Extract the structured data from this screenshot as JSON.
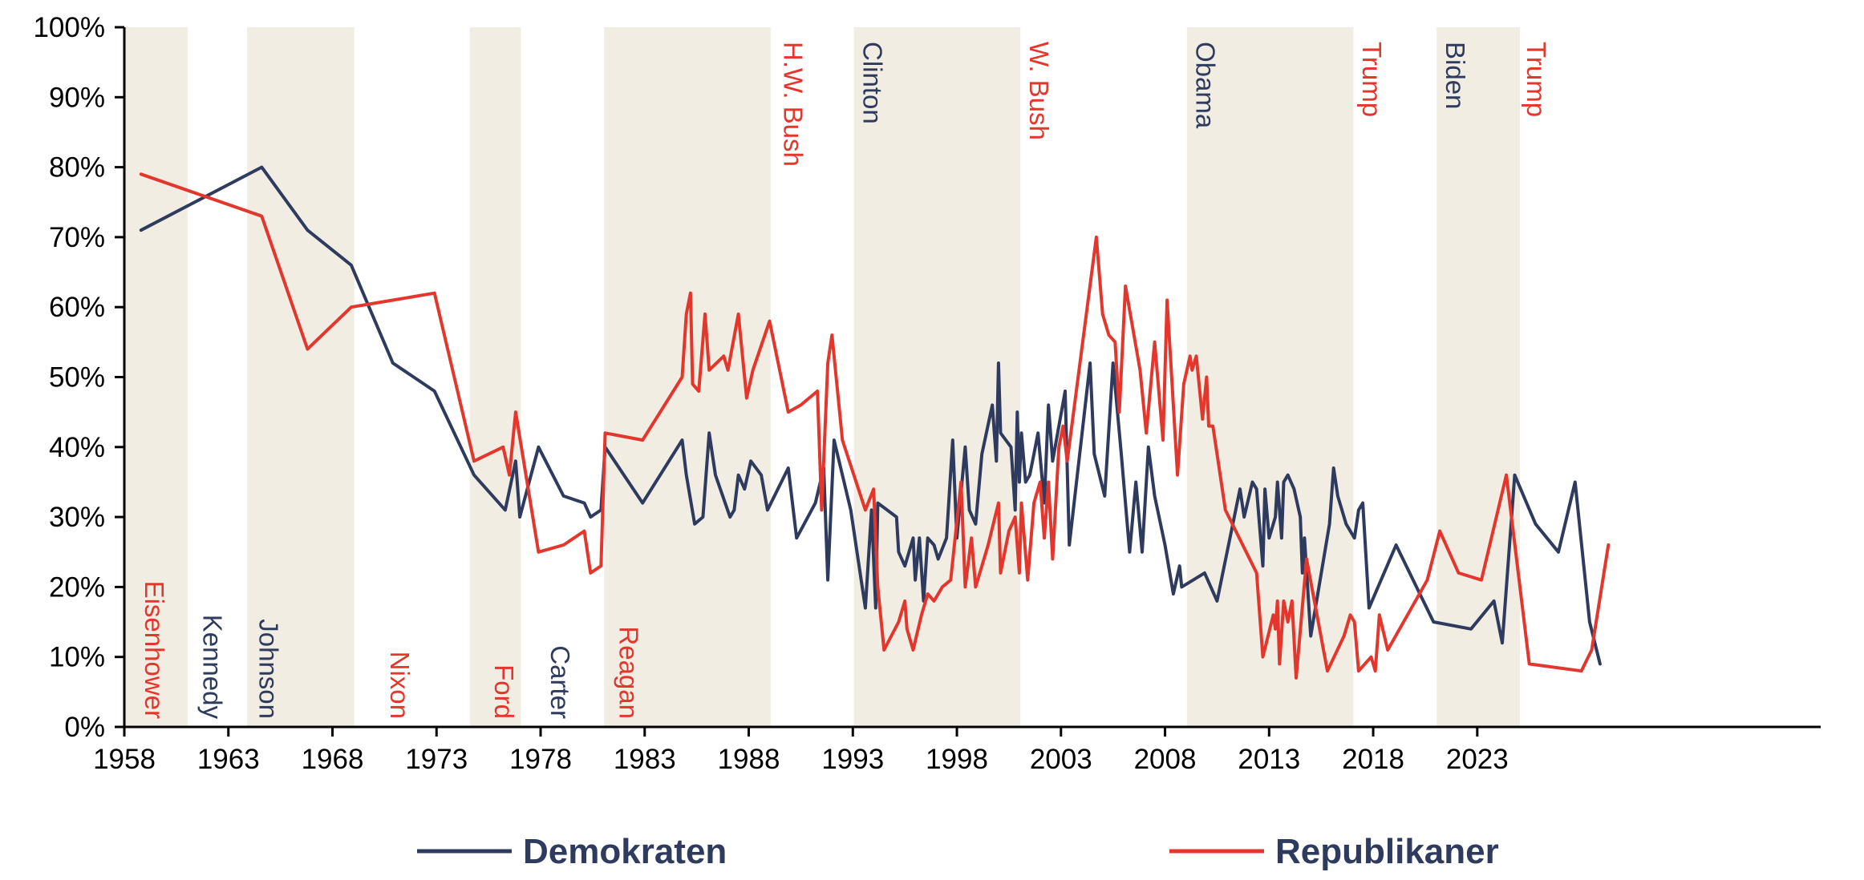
{
  "chart_data": {
    "type": "line",
    "title": "",
    "xlabel": "",
    "ylabel": "",
    "xlim": [
      1958,
      2026.5
    ],
    "ylim": [
      0,
      100
    ],
    "x_ticks": [
      1958,
      1963,
      1968,
      1973,
      1978,
      1983,
      1988,
      1993,
      1998,
      2003,
      2008,
      2013,
      2018,
      2023
    ],
    "x_tick_labels": [
      "1958",
      "1963",
      "1968",
      "1973",
      "1978",
      "1983",
      "1988",
      "1993",
      "1998",
      "2003",
      "2008",
      "2013",
      "2018",
      "2023"
    ],
    "y_ticks": [
      0,
      10,
      20,
      30,
      40,
      50,
      60,
      70,
      80,
      90,
      100
    ],
    "y_tick_labels": [
      "0%",
      "10%",
      "20%",
      "30%",
      "40%",
      "50%",
      "60%",
      "70%",
      "80%",
      "90%",
      "100%"
    ],
    "grid": false,
    "legend_position": "bottom",
    "colors": {
      "dem": "#2e3b5e",
      "rep": "#e3362c",
      "band": "#f1ede3",
      "axis": "#000000"
    },
    "shaded_periods": [
      [
        1958,
        1961.05
      ],
      [
        1963.9,
        1969.05
      ],
      [
        1974.6,
        1977.05
      ],
      [
        1981.05,
        1989.05
      ],
      [
        1993.05,
        2001.05
      ],
      [
        2009.05,
        2017.05
      ],
      [
        2021.05,
        2025.05
      ]
    ],
    "presidents": [
      {
        "name": "Eisenhower",
        "party": "rep",
        "x": 1959.0,
        "position": "bottom"
      },
      {
        "name": "Kennedy",
        "party": "dem",
        "x": 1961.8,
        "position": "bottom"
      },
      {
        "name": "Johnson",
        "party": "dem",
        "x": 1964.5,
        "position": "bottom"
      },
      {
        "name": "Nixon",
        "party": "rep",
        "x": 1970.8,
        "position": "bottom"
      },
      {
        "name": "Ford",
        "party": "rep",
        "x": 1975.8,
        "position": "bottom"
      },
      {
        "name": "Carter",
        "party": "dem",
        "x": 1978.5,
        "position": "bottom"
      },
      {
        "name": "Reagan",
        "party": "rep",
        "x": 1981.8,
        "position": "bottom"
      },
      {
        "name": "H.W. Bush",
        "party": "rep",
        "x": 1989.7,
        "position": "top"
      },
      {
        "name": "Clinton",
        "party": "dem",
        "x": 1993.5,
        "position": "top"
      },
      {
        "name": "W. Bush",
        "party": "rep",
        "x": 2001.5,
        "position": "top"
      },
      {
        "name": "Obama",
        "party": "dem",
        "x": 2009.5,
        "position": "top"
      },
      {
        "name": "Trump",
        "party": "rep",
        "x": 2017.5,
        "position": "top"
      },
      {
        "name": "Biden",
        "party": "dem",
        "x": 2021.5,
        "position": "top"
      },
      {
        "name": "Trump",
        "party": "rep",
        "x": 2025.4,
        "position": "top"
      }
    ],
    "series": [
      {
        "name": "Demokraten",
        "color": "#2e3b5e",
        "points": [
          [
            1958.8,
            71
          ],
          [
            1964.6,
            80
          ],
          [
            1966.8,
            71
          ],
          [
            1968.9,
            66
          ],
          [
            1970.9,
            52
          ],
          [
            1972.9,
            48
          ],
          [
            1974.8,
            36
          ],
          [
            1976.3,
            31
          ],
          [
            1976.8,
            38
          ],
          [
            1977.0,
            30
          ],
          [
            1977.9,
            40
          ],
          [
            1979.1,
            33
          ],
          [
            1980.1,
            32
          ],
          [
            1980.4,
            30
          ],
          [
            1980.9,
            31
          ],
          [
            1981.1,
            40
          ],
          [
            1982.9,
            32
          ],
          [
            1984.8,
            41
          ],
          [
            1985.0,
            36
          ],
          [
            1985.4,
            29
          ],
          [
            1985.8,
            30
          ],
          [
            1986.1,
            42
          ],
          [
            1986.4,
            36
          ],
          [
            1987.1,
            30
          ],
          [
            1987.3,
            31
          ],
          [
            1987.5,
            36
          ],
          [
            1987.8,
            34
          ],
          [
            1988.1,
            38
          ],
          [
            1988.6,
            36
          ],
          [
            1988.9,
            31
          ],
          [
            1989.9,
            37
          ],
          [
            1990.3,
            27
          ],
          [
            1991.2,
            32
          ],
          [
            1991.6,
            37
          ],
          [
            1991.8,
            21
          ],
          [
            1992.1,
            41
          ],
          [
            1992.9,
            31
          ],
          [
            1993.6,
            17
          ],
          [
            1993.9,
            31
          ],
          [
            1994.1,
            17
          ],
          [
            1994.2,
            32
          ],
          [
            1995.1,
            30
          ],
          [
            1995.2,
            25
          ],
          [
            1995.5,
            23
          ],
          [
            1995.9,
            27
          ],
          [
            1996.0,
            21
          ],
          [
            1996.2,
            27
          ],
          [
            1996.4,
            18
          ],
          [
            1996.6,
            27
          ],
          [
            1996.9,
            26
          ],
          [
            1997.1,
            24
          ],
          [
            1997.5,
            27
          ],
          [
            1997.8,
            41
          ],
          [
            1998.0,
            27
          ],
          [
            1998.4,
            40
          ],
          [
            1998.6,
            31
          ],
          [
            1998.9,
            29
          ],
          [
            1999.2,
            39
          ],
          [
            1999.7,
            46
          ],
          [
            1999.9,
            38
          ],
          [
            2000.0,
            52
          ],
          [
            2000.1,
            42
          ],
          [
            2000.6,
            40
          ],
          [
            2000.8,
            31
          ],
          [
            2000.9,
            45
          ],
          [
            2001.0,
            35
          ],
          [
            2001.1,
            42
          ],
          [
            2001.3,
            35
          ],
          [
            2001.5,
            36
          ],
          [
            2001.7,
            39
          ],
          [
            2001.9,
            42
          ],
          [
            2002.2,
            32
          ],
          [
            2002.4,
            46
          ],
          [
            2002.6,
            38
          ],
          [
            2002.9,
            43
          ],
          [
            2003.2,
            48
          ],
          [
            2003.4,
            26
          ],
          [
            2004.4,
            52
          ],
          [
            2004.6,
            39
          ],
          [
            2005.1,
            33
          ],
          [
            2005.5,
            52
          ],
          [
            2005.9,
            39
          ],
          [
            2006.3,
            25
          ],
          [
            2006.6,
            35
          ],
          [
            2006.9,
            25
          ],
          [
            2007.2,
            40
          ],
          [
            2007.5,
            33
          ],
          [
            2008.0,
            26
          ],
          [
            2008.4,
            19
          ],
          [
            2008.7,
            23
          ],
          [
            2008.8,
            20
          ],
          [
            2009.9,
            22
          ],
          [
            2010.5,
            18
          ],
          [
            2011.6,
            34
          ],
          [
            2011.8,
            30
          ],
          [
            2012.2,
            35
          ],
          [
            2012.4,
            34
          ],
          [
            2012.7,
            23
          ],
          [
            2012.8,
            34
          ],
          [
            2013.0,
            27
          ],
          [
            2013.3,
            30
          ],
          [
            2013.4,
            35
          ],
          [
            2013.6,
            27
          ],
          [
            2013.7,
            35
          ],
          [
            2013.9,
            36
          ],
          [
            2014.2,
            34
          ],
          [
            2014.5,
            30
          ],
          [
            2014.6,
            22
          ],
          [
            2014.7,
            27
          ],
          [
            2015.0,
            13
          ],
          [
            2015.9,
            29
          ],
          [
            2016.1,
            37
          ],
          [
            2016.3,
            33
          ],
          [
            2016.7,
            29
          ],
          [
            2017.1,
            27
          ],
          [
            2017.3,
            31
          ],
          [
            2017.5,
            32
          ],
          [
            2017.8,
            17
          ],
          [
            2019.1,
            26
          ],
          [
            2020.9,
            15
          ],
          [
            2022.7,
            14
          ],
          [
            2023.8,
            18
          ],
          [
            2024.2,
            12
          ],
          [
            2024.8,
            36
          ],
          [
            2025.8,
            29
          ],
          [
            2026.9,
            25
          ],
          [
            2027.7,
            35
          ],
          [
            2028.4,
            15
          ],
          [
            2028.9,
            9
          ]
        ]
      },
      {
        "name": "Republikaner",
        "color": "#e3362c",
        "points": [
          [
            1958.8,
            79
          ],
          [
            1964.6,
            73
          ],
          [
            1966.8,
            54
          ],
          [
            1968.9,
            60
          ],
          [
            1970.9,
            61
          ],
          [
            1972.9,
            62
          ],
          [
            1974.8,
            38
          ],
          [
            1976.2,
            40
          ],
          [
            1976.5,
            36
          ],
          [
            1976.8,
            45
          ],
          [
            1977.9,
            25
          ],
          [
            1979.1,
            26
          ],
          [
            1980.1,
            28
          ],
          [
            1980.4,
            22
          ],
          [
            1980.9,
            23
          ],
          [
            1981.1,
            42
          ],
          [
            1982.9,
            41
          ],
          [
            1984.8,
            50
          ],
          [
            1985.0,
            59
          ],
          [
            1985.2,
            62
          ],
          [
            1985.3,
            49
          ],
          [
            1985.6,
            48
          ],
          [
            1985.9,
            59
          ],
          [
            1986.1,
            51
          ],
          [
            1986.8,
            53
          ],
          [
            1987.0,
            51
          ],
          [
            1987.5,
            59
          ],
          [
            1987.9,
            47
          ],
          [
            1988.2,
            51
          ],
          [
            1989.0,
            58
          ],
          [
            1989.9,
            45
          ],
          [
            1990.5,
            46
          ],
          [
            1991.3,
            48
          ],
          [
            1991.5,
            31
          ],
          [
            1991.8,
            52
          ],
          [
            1992.0,
            56
          ],
          [
            1992.5,
            41
          ],
          [
            1993.6,
            31
          ],
          [
            1994.0,
            34
          ],
          [
            1994.2,
            20
          ],
          [
            1994.5,
            11
          ],
          [
            1995.2,
            15
          ],
          [
            1995.5,
            18
          ],
          [
            1995.6,
            14
          ],
          [
            1995.9,
            11
          ],
          [
            1996.3,
            16
          ],
          [
            1996.6,
            19
          ],
          [
            1996.9,
            18
          ],
          [
            1997.3,
            20
          ],
          [
            1997.7,
            21
          ],
          [
            1998.2,
            35
          ],
          [
            1998.4,
            20
          ],
          [
            1998.7,
            27
          ],
          [
            1998.9,
            20
          ],
          [
            1999.5,
            26
          ],
          [
            2000.0,
            32
          ],
          [
            2000.1,
            22
          ],
          [
            2000.5,
            28
          ],
          [
            2000.8,
            30
          ],
          [
            2001.0,
            22
          ],
          [
            2001.1,
            32
          ],
          [
            2001.4,
            21
          ],
          [
            2001.7,
            32
          ],
          [
            2002.0,
            35
          ],
          [
            2002.2,
            27
          ],
          [
            2002.4,
            35
          ],
          [
            2002.6,
            24
          ],
          [
            2002.9,
            40
          ],
          [
            2003.1,
            43
          ],
          [
            2003.3,
            38
          ],
          [
            2004.7,
            70
          ],
          [
            2005.0,
            59
          ],
          [
            2005.3,
            56
          ],
          [
            2005.6,
            55
          ],
          [
            2005.8,
            45
          ],
          [
            2006.1,
            63
          ],
          [
            2006.8,
            51
          ],
          [
            2007.1,
            42
          ],
          [
            2007.5,
            55
          ],
          [
            2007.9,
            41
          ],
          [
            2008.1,
            61
          ],
          [
            2008.6,
            36
          ],
          [
            2008.9,
            49
          ],
          [
            2009.2,
            53
          ],
          [
            2009.3,
            51
          ],
          [
            2009.5,
            53
          ],
          [
            2009.8,
            44
          ],
          [
            2010.0,
            50
          ],
          [
            2010.1,
            43
          ],
          [
            2010.3,
            43
          ],
          [
            2010.9,
            31
          ],
          [
            2012.4,
            22
          ],
          [
            2012.7,
            10
          ],
          [
            2013.2,
            16
          ],
          [
            2013.3,
            14
          ],
          [
            2013.4,
            18
          ],
          [
            2013.5,
            9
          ],
          [
            2013.7,
            18
          ],
          [
            2013.9,
            15
          ],
          [
            2014.1,
            18
          ],
          [
            2014.3,
            7
          ],
          [
            2014.8,
            24
          ],
          [
            2015.8,
            8
          ],
          [
            2016.6,
            13
          ],
          [
            2016.9,
            16
          ],
          [
            2017.1,
            15
          ],
          [
            2017.3,
            8
          ],
          [
            2017.9,
            10
          ],
          [
            2018.1,
            8
          ],
          [
            2018.3,
            16
          ],
          [
            2018.7,
            11
          ],
          [
            2020.6,
            21
          ],
          [
            2021.2,
            28
          ],
          [
            2022.1,
            22
          ],
          [
            2023.2,
            21
          ],
          [
            2024.4,
            36
          ],
          [
            2025.5,
            9
          ],
          [
            2028.0,
            8
          ],
          [
            2028.5,
            11
          ],
          [
            2029.3,
            26
          ]
        ]
      }
    ],
    "legend": [
      {
        "label": "Demokraten",
        "series": 0
      },
      {
        "label": "Republikaner",
        "series": 1
      }
    ]
  }
}
